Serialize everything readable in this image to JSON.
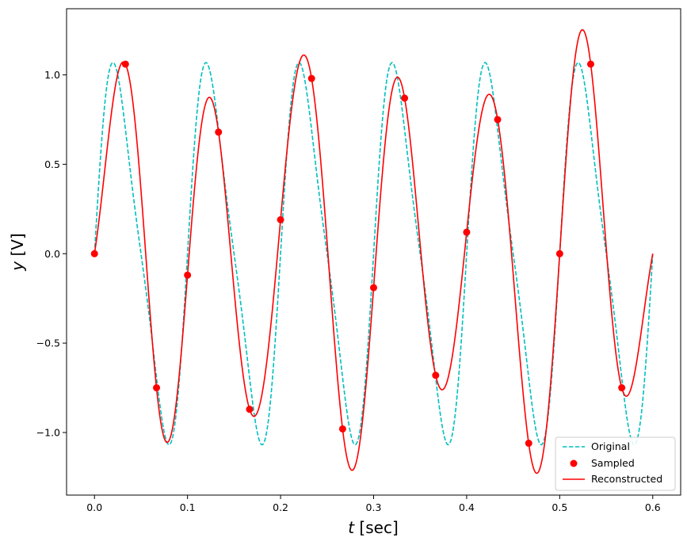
{
  "chart_data": {
    "type": "line",
    "xlabel": {
      "var": "t",
      "unit": " [sec]"
    },
    "ylabel": {
      "var": "y",
      "unit": " [V]"
    },
    "xlim": [
      -0.03,
      0.63
    ],
    "ylim": [
      -1.35,
      1.37
    ],
    "x_ticks": [
      0.0,
      0.1,
      0.2,
      0.3,
      0.4,
      0.5,
      0.6
    ],
    "x_tick_labels": [
      "0.0",
      "0.1",
      "0.2",
      "0.3",
      "0.4",
      "0.5",
      "0.6"
    ],
    "y_ticks": [
      -1.0,
      -0.5,
      0.0,
      0.5,
      1.0
    ],
    "y_tick_labels": [
      "−1.0",
      "−0.5",
      "0.0",
      "0.5",
      "1.0"
    ],
    "grid": false,
    "legend_position": "bottom-right",
    "series": [
      {
        "name": "Original",
        "style": "dashed",
        "color": "#00bfbf",
        "x_range": [
          0,
          0.6
        ],
        "components": [
          {
            "amplitude": 1.0,
            "frequency_hz": 10
          },
          {
            "amplitude": 0.2,
            "frequency_hz": 20
          }
        ]
      },
      {
        "name": "Sampled",
        "style": "markers",
        "color": "#ff0000",
        "x": [
          0.0,
          0.0333,
          0.0667,
          0.1,
          0.1333,
          0.1667,
          0.2,
          0.2333,
          0.2667,
          0.3,
          0.3333,
          0.3667,
          0.4,
          0.4333,
          0.4667,
          0.5,
          0.5333,
          0.5667
        ],
        "y": [
          0.0,
          1.06,
          -0.75,
          -0.12,
          0.68,
          -0.87,
          0.19,
          0.98,
          -0.98,
          -0.19,
          0.87,
          -0.68,
          0.12,
          0.75,
          -1.06,
          0.0,
          1.06,
          -0.75
        ]
      },
      {
        "name": "Reconstructed",
        "style": "solid",
        "color": "#ff0000",
        "method": "sinc interpolation of sampled points",
        "x_range": [
          0,
          0.6
        ]
      }
    ]
  }
}
